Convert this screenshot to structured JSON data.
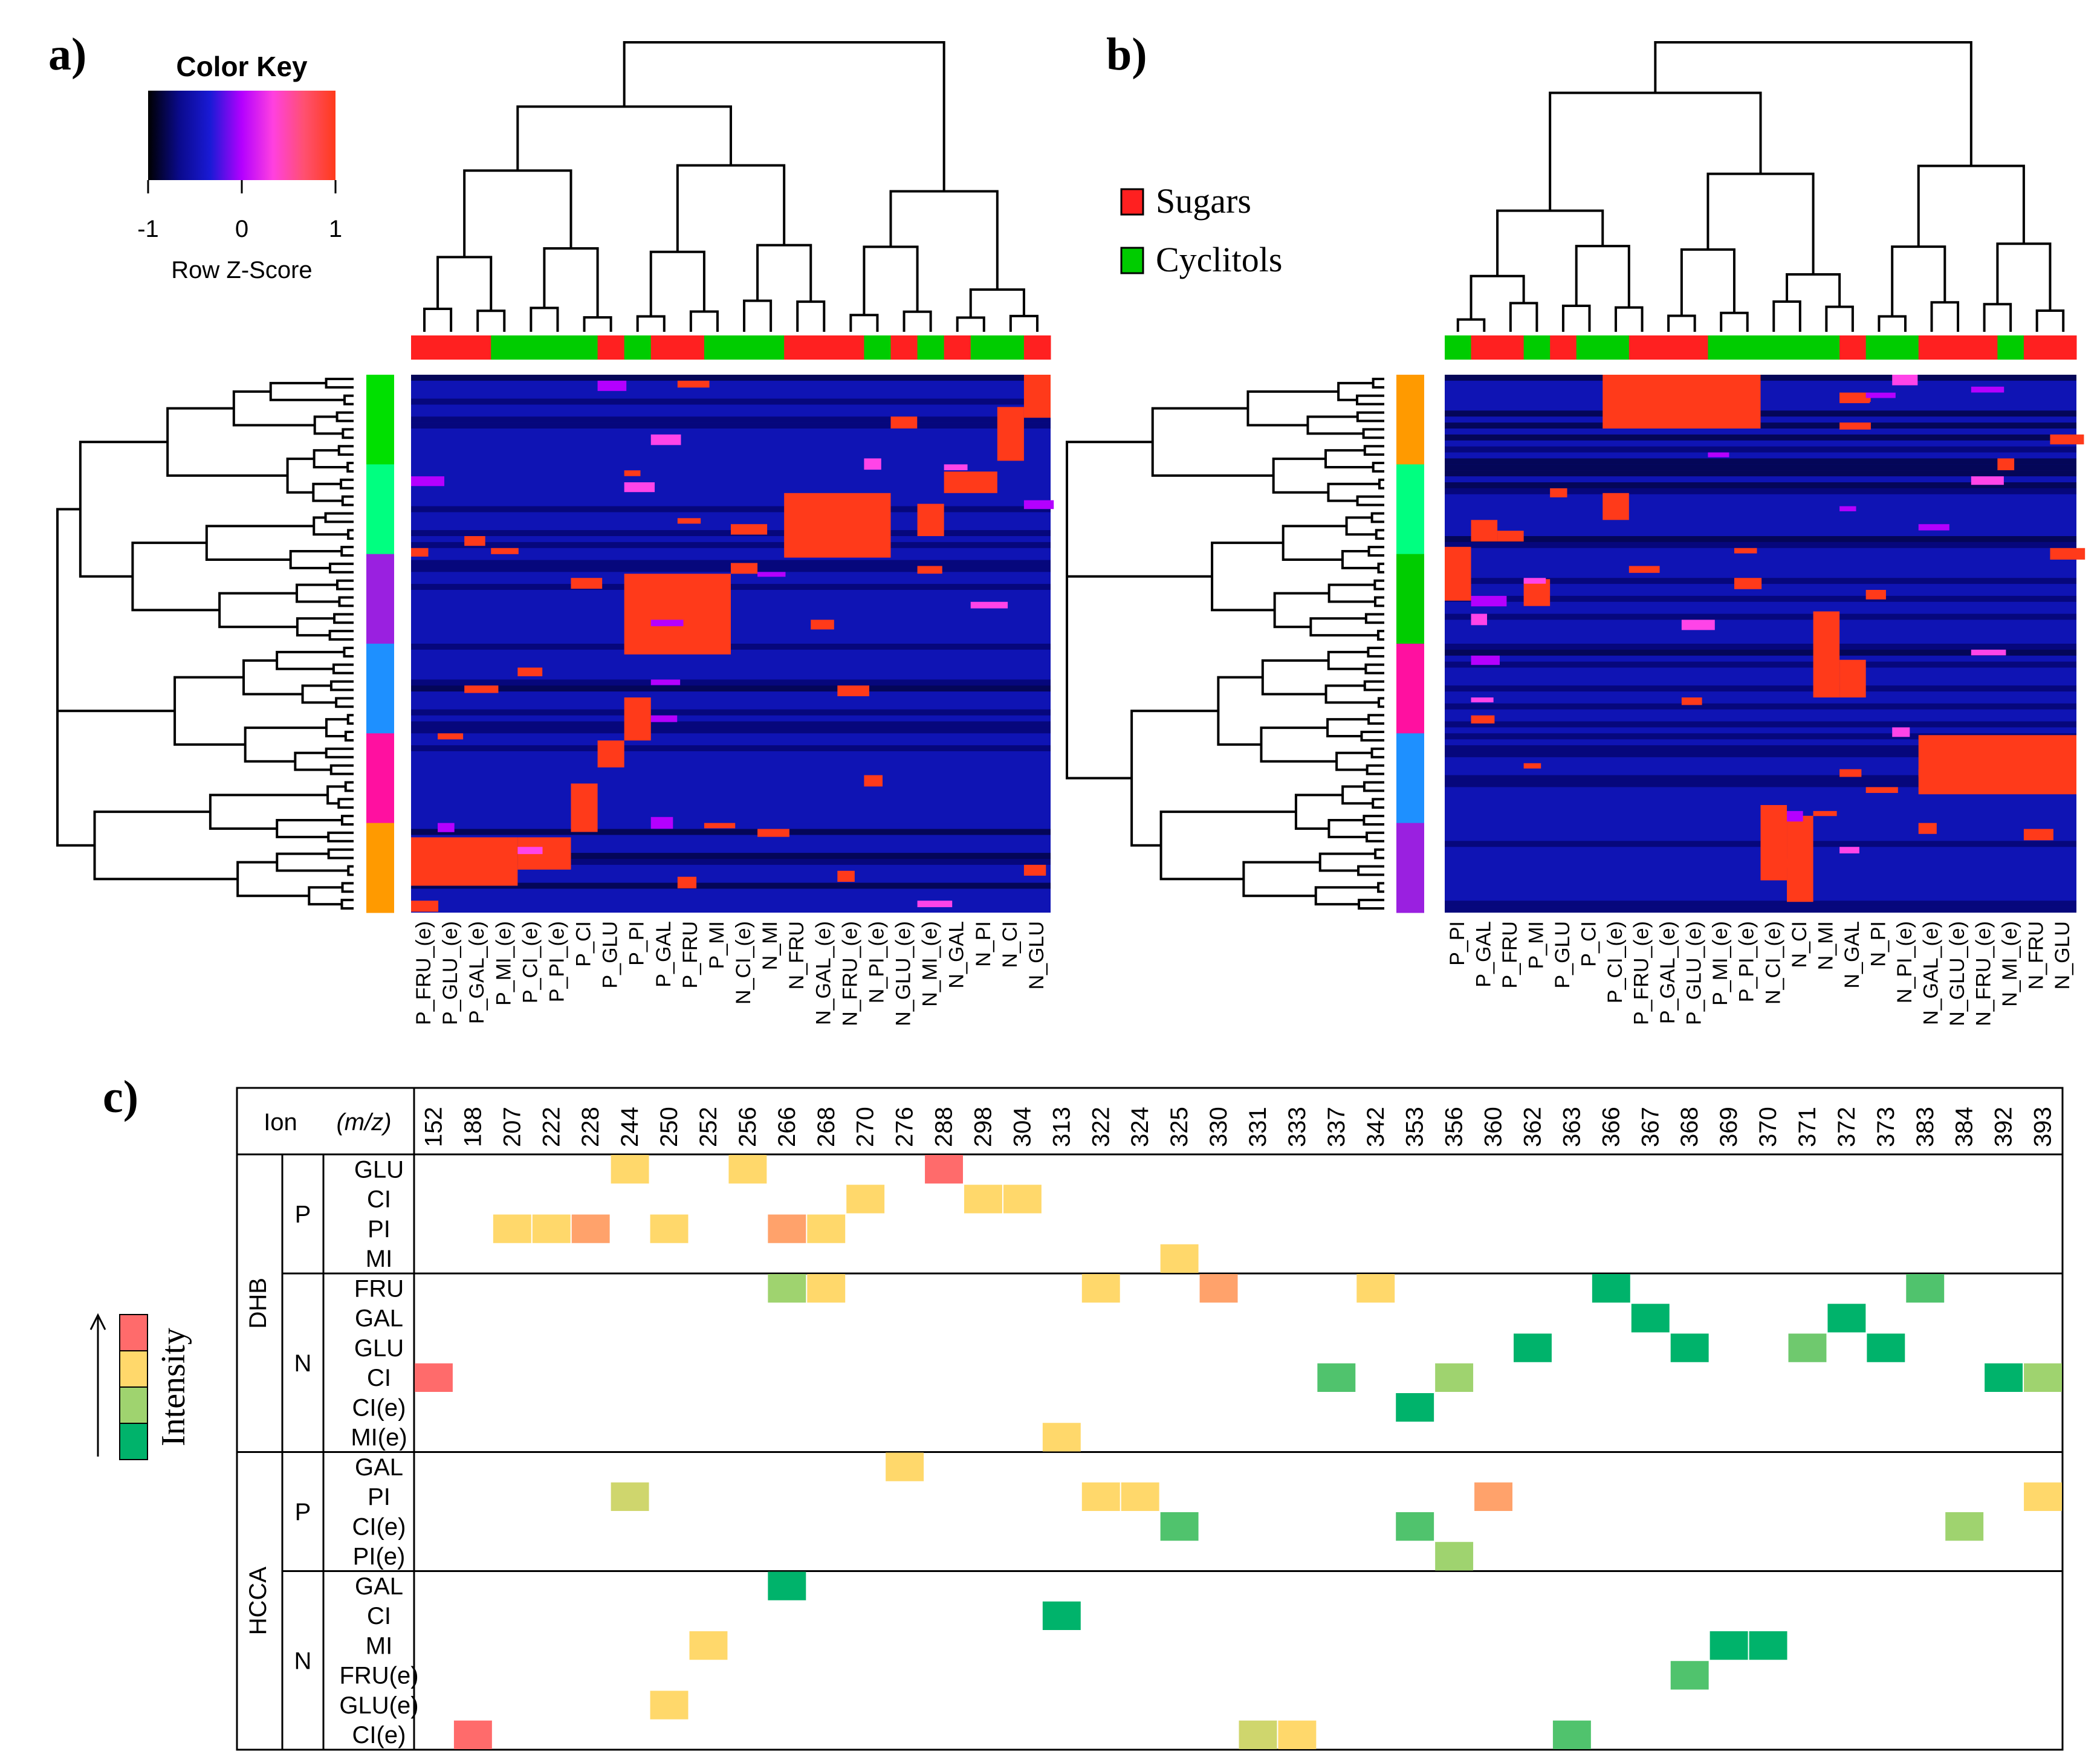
{
  "panel_labels": {
    "a": "a)",
    "b": "b)",
    "c": "c)"
  },
  "color_key": {
    "title": "Color Key",
    "ticks": [
      "-1",
      "0",
      "1"
    ],
    "xlabel": "Row Z-Score",
    "gradient": [
      "#000000",
      "#0a0a8c",
      "#1a1ad6",
      "#b400ff",
      "#ff40e0",
      "#ff5070",
      "#ff3a1a"
    ]
  },
  "legend": {
    "items": [
      {
        "label": "Sugars",
        "color": "#ff2020"
      },
      {
        "label": "Cyclitols",
        "color": "#00cc00"
      }
    ]
  },
  "chart_data": [
    {
      "type": "heatmap",
      "panel": "a",
      "columns": [
        "P_FRU_(e)",
        "P_GLU_(e)",
        "P_GAL_(e)",
        "P_MI_(e)",
        "P_CI_(e)",
        "P_PI_(e)",
        "P_CI",
        "P_GLU",
        "P_PI",
        "P_GAL",
        "P_FRU",
        "P_MI",
        "N_CI_(e)",
        "N_MI",
        "N_FRU",
        "N_GAL_(e)",
        "N_FRU_(e)",
        "N_PI_(e)",
        "N_GLU_(e)",
        "N_MI_(e)",
        "N_GAL",
        "N_PI",
        "N_CI",
        "N_GLU"
      ],
      "column_groups": [
        "Sugars",
        "Sugars",
        "Sugars",
        "Cyclitols",
        "Cyclitols",
        "Cyclitols",
        "Cyclitols",
        "Sugars",
        "Cyclitols",
        "Sugars",
        "Sugars",
        "Cyclitols",
        "Cyclitols",
        "Cyclitols",
        "Sugars",
        "Sugars",
        "Sugars",
        "Cyclitols",
        "Sugars",
        "Cyclitols",
        "Sugars",
        "Cyclitols",
        "Cyclitols",
        "Sugars"
      ],
      "row_cluster_colors": [
        "#00e000",
        "#00ff80",
        "#9a20e0",
        "#1e90ff",
        "#ff10a0",
        "#ff9a00"
      ],
      "high_blocks": [
        {
          "cols": [
            0,
            4
          ],
          "rows": [
            0.86,
            0.95
          ]
        },
        {
          "cols": [
            4,
            6
          ],
          "rows": [
            0.86,
            0.92
          ]
        },
        {
          "cols": [
            6,
            7
          ],
          "rows": [
            0.76,
            0.85
          ]
        },
        {
          "cols": [
            7,
            8
          ],
          "rows": [
            0.68,
            0.73
          ]
        },
        {
          "cols": [
            8,
            9
          ],
          "rows": [
            0.6,
            0.68
          ]
        },
        {
          "cols": [
            8,
            12
          ],
          "rows": [
            0.37,
            0.52
          ]
        },
        {
          "cols": [
            12,
            13
          ],
          "rows": [
            0.35,
            0.37
          ]
        },
        {
          "cols": [
            14,
            18
          ],
          "rows": [
            0.22,
            0.34
          ]
        },
        {
          "cols": [
            19,
            20
          ],
          "rows": [
            0.24,
            0.3
          ]
        },
        {
          "cols": [
            20,
            22
          ],
          "rows": [
            0.18,
            0.22
          ]
        },
        {
          "cols": [
            22,
            23
          ],
          "rows": [
            0.06,
            0.16
          ]
        },
        {
          "cols": [
            23,
            24
          ],
          "rows": [
            0.0,
            0.08
          ]
        }
      ]
    },
    {
      "type": "heatmap",
      "panel": "b",
      "columns": [
        "P_PI",
        "P_GAL",
        "P_FRU",
        "P_MI",
        "P_GLU",
        "P_CI",
        "P_CI_(e)",
        "P_FRU_(e)",
        "P_GAL_(e)",
        "P_GLU_(e)",
        "P_MI_(e)",
        "P_PI_(e)",
        "N_CI_(e)",
        "N_CI",
        "N_MI",
        "N_GAL",
        "N_PI",
        "N_PI_(e)",
        "N_GAL_(e)",
        "N_GLU_(e)",
        "N_FRU_(e)",
        "N_MI_(e)",
        "N_FRU",
        "N_GLU"
      ],
      "column_groups": [
        "Cyclitols",
        "Sugars",
        "Sugars",
        "Cyclitols",
        "Sugars",
        "Cyclitols",
        "Cyclitols",
        "Sugars",
        "Sugars",
        "Sugars",
        "Cyclitols",
        "Cyclitols",
        "Cyclitols",
        "Cyclitols",
        "Cyclitols",
        "Sugars",
        "Cyclitols",
        "Cyclitols",
        "Sugars",
        "Sugars",
        "Sugars",
        "Cyclitols",
        "Sugars",
        "Sugars"
      ],
      "row_cluster_colors": [
        "#ff9a00",
        "#00ff80",
        "#00cc00",
        "#ff10a0",
        "#1e90ff",
        "#9a20e0"
      ],
      "high_blocks": [
        {
          "cols": [
            6,
            12
          ],
          "rows": [
            0.0,
            0.1
          ]
        },
        {
          "cols": [
            6,
            7
          ],
          "rows": [
            0.22,
            0.27
          ]
        },
        {
          "cols": [
            0,
            1
          ],
          "rows": [
            0.32,
            0.42
          ]
        },
        {
          "cols": [
            1,
            2
          ],
          "rows": [
            0.27,
            0.31
          ]
        },
        {
          "cols": [
            2,
            3
          ],
          "rows": [
            0.29,
            0.31
          ]
        },
        {
          "cols": [
            3,
            4
          ],
          "rows": [
            0.38,
            0.43
          ]
        },
        {
          "cols": [
            14,
            15
          ],
          "rows": [
            0.44,
            0.6
          ]
        },
        {
          "cols": [
            15,
            16
          ],
          "rows": [
            0.53,
            0.6
          ]
        },
        {
          "cols": [
            18,
            24
          ],
          "rows": [
            0.67,
            0.78
          ]
        },
        {
          "cols": [
            12,
            13
          ],
          "rows": [
            0.8,
            0.94
          ]
        },
        {
          "cols": [
            13,
            14
          ],
          "rows": [
            0.82,
            0.98
          ]
        }
      ]
    },
    {
      "type": "table",
      "panel": "c",
      "header": {
        "ion": "Ion",
        "mz": "(m/z)"
      },
      "mz": [
        "152",
        "188",
        "207",
        "222",
        "228",
        "244",
        "250",
        "252",
        "256",
        "266",
        "268",
        "270",
        "276",
        "288",
        "298",
        "304",
        "313",
        "322",
        "324",
        "325",
        "330",
        "331",
        "333",
        "337",
        "342",
        "353",
        "356",
        "360",
        "362",
        "363",
        "366",
        "367",
        "368",
        "369",
        "370",
        "371",
        "372",
        "373",
        "383",
        "384",
        "392",
        "393"
      ],
      "matrices": [
        {
          "name": "DHB",
          "polarities": [
            {
              "name": "P",
              "rows": [
                "GLU",
                "CI",
                "PI",
                "MI"
              ]
            },
            {
              "name": "N",
              "rows": [
                "FRU",
                "GAL",
                "GLU",
                "CI",
                "CI(e)",
                "MI(e)"
              ]
            }
          ]
        },
        {
          "name": "HCCA",
          "polarities": [
            {
              "name": "P",
              "rows": [
                "GAL",
                "PI",
                "CI(e)",
                "PI(e)"
              ]
            },
            {
              "name": "N",
              "rows": [
                "GAL",
                "CI",
                "MI",
                "FRU(e)",
                "GLU(e)",
                "CI(e)"
              ]
            }
          ]
        }
      ],
      "intensity_scale": [
        "#00b36b",
        "#9fd36f",
        "#ffd86b",
        "#ff6b6b"
      ],
      "intensity_label": "Intensity",
      "cells": [
        {
          "row": 0,
          "mz": "244",
          "level": 2
        },
        {
          "row": 0,
          "mz": "256",
          "level": 2
        },
        {
          "row": 0,
          "mz": "288",
          "level": 3
        },
        {
          "row": 1,
          "mz": "270",
          "level": 2
        },
        {
          "row": 1,
          "mz": "298",
          "level": 2
        },
        {
          "row": 1,
          "mz": "304",
          "level": 2
        },
        {
          "row": 2,
          "mz": "207",
          "level": 2
        },
        {
          "row": 2,
          "mz": "222",
          "level": 2
        },
        {
          "row": 2,
          "mz": "228",
          "level": 2.5
        },
        {
          "row": 2,
          "mz": "250",
          "level": 2
        },
        {
          "row": 2,
          "mz": "266",
          "level": 2.5
        },
        {
          "row": 2,
          "mz": "268",
          "level": 2
        },
        {
          "row": 3,
          "mz": "325",
          "level": 2
        },
        {
          "row": 4,
          "mz": "266",
          "level": 1
        },
        {
          "row": 4,
          "mz": "268",
          "level": 2
        },
        {
          "row": 4,
          "mz": "322",
          "level": 2
        },
        {
          "row": 4,
          "mz": "330",
          "level": 2.5
        },
        {
          "row": 4,
          "mz": "342",
          "level": 2
        },
        {
          "row": 4,
          "mz": "366",
          "level": 0
        },
        {
          "row": 4,
          "mz": "383",
          "level": 0.5
        },
        {
          "row": 5,
          "mz": "367",
          "level": 0
        },
        {
          "row": 5,
          "mz": "372",
          "level": 0
        },
        {
          "row": 6,
          "mz": "362",
          "level": 0
        },
        {
          "row": 6,
          "mz": "368",
          "level": 0
        },
        {
          "row": 6,
          "mz": "371",
          "level": 0.7
        },
        {
          "row": 6,
          "mz": "373",
          "level": 0
        },
        {
          "row": 7,
          "mz": "152",
          "level": 3
        },
        {
          "row": 7,
          "mz": "337",
          "level": 0.5
        },
        {
          "row": 7,
          "mz": "356",
          "level": 1
        },
        {
          "row": 7,
          "mz": "392",
          "level": 0
        },
        {
          "row": 7,
          "mz": "393",
          "level": 1
        },
        {
          "row": 8,
          "mz": "353",
          "level": 0
        },
        {
          "row": 9,
          "mz": "313",
          "level": 2
        },
        {
          "row": 10,
          "mz": "276",
          "level": 2
        },
        {
          "row": 11,
          "mz": "244",
          "level": 1.5
        },
        {
          "row": 11,
          "mz": "322",
          "level": 2
        },
        {
          "row": 11,
          "mz": "324",
          "level": 2
        },
        {
          "row": 11,
          "mz": "360",
          "level": 2.5
        },
        {
          "row": 11,
          "mz": "393",
          "level": 2
        },
        {
          "row": 12,
          "mz": "325",
          "level": 0.5
        },
        {
          "row": 12,
          "mz": "353",
          "level": 0.5
        },
        {
          "row": 12,
          "mz": "384",
          "level": 1
        },
        {
          "row": 13,
          "mz": "356",
          "level": 1
        },
        {
          "row": 14,
          "mz": "266",
          "level": 0
        },
        {
          "row": 15,
          "mz": "313",
          "level": 0
        },
        {
          "row": 16,
          "mz": "252",
          "level": 2
        },
        {
          "row": 16,
          "mz": "369",
          "level": 0
        },
        {
          "row": 16,
          "mz": "370",
          "level": 0
        },
        {
          "row": 17,
          "mz": "368",
          "level": 0.5
        },
        {
          "row": 18,
          "mz": "250",
          "level": 2
        },
        {
          "row": 19,
          "mz": "188",
          "level": 3
        },
        {
          "row": 19,
          "mz": "331",
          "level": 1.5
        },
        {
          "row": 19,
          "mz": "333",
          "level": 2
        },
        {
          "row": 19,
          "mz": "363",
          "level": 0.5
        }
      ]
    }
  ]
}
